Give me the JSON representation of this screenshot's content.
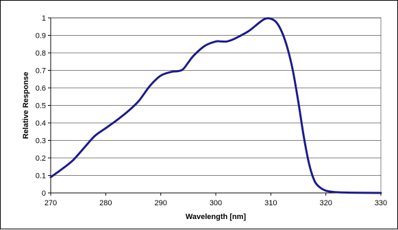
{
  "chart_data": {
    "type": "line",
    "title": "",
    "xlabel": "Wavelength [nm]",
    "ylabel": "Relative Response",
    "xlim": [
      270,
      330
    ],
    "ylim": [
      0,
      1
    ],
    "x_ticks": [
      270,
      280,
      290,
      300,
      310,
      320,
      330
    ],
    "y_ticks": [
      0,
      0.1,
      0.2,
      0.3,
      0.4,
      0.5,
      0.6,
      0.7,
      0.8,
      0.9,
      1
    ],
    "grid": "horizontal",
    "legend": "none",
    "series_color": "#1a1a8c",
    "series": [
      {
        "x": [
          270,
          272,
          274,
          276,
          278,
          280,
          282,
          284,
          286,
          288,
          290,
          292,
          293,
          294,
          295,
          296,
          298,
          300,
          301,
          302,
          303,
          304,
          306,
          308,
          309,
          310,
          311,
          312,
          313,
          314,
          315,
          316,
          317,
          318,
          319,
          320,
          321,
          322,
          324,
          326,
          330
        ],
        "y": [
          0.09,
          0.135,
          0.185,
          0.255,
          0.325,
          0.37,
          0.415,
          0.465,
          0.525,
          0.61,
          0.67,
          0.692,
          0.695,
          0.705,
          0.745,
          0.785,
          0.84,
          0.865,
          0.865,
          0.865,
          0.875,
          0.89,
          0.925,
          0.975,
          0.995,
          0.995,
          0.975,
          0.92,
          0.83,
          0.7,
          0.52,
          0.32,
          0.16,
          0.065,
          0.03,
          0.013,
          0.007,
          0.004,
          0.002,
          0.001,
          0.0
        ]
      }
    ]
  }
}
